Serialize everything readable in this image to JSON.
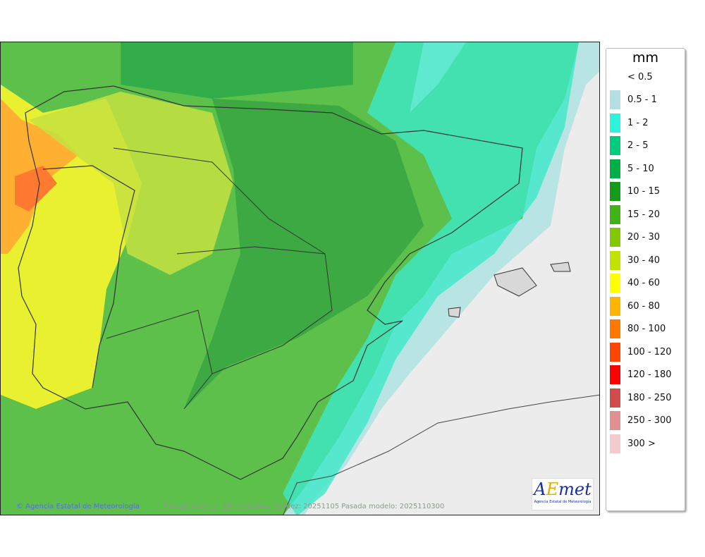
{
  "map": {
    "credit": "© Agencia Estatal de Meteorología",
    "caption": "Precipitación en 24 h máxima. Validez: 20251105 Pasada modelo: 2025110300",
    "logo_text": "AEmet",
    "logo_subtitle": "Agencia Estatal de Meteorología"
  },
  "legend": {
    "unit": "mm",
    "items": [
      {
        "label": "< 0.5",
        "color": "#ffffff"
      },
      {
        "label": "0.5 - 1",
        "color": "#b4dfe2"
      },
      {
        "label": "1 - 2",
        "color": "#2ef2dc"
      },
      {
        "label": "2 - 5",
        "color": "#00cc80"
      },
      {
        "label": "5 - 10",
        "color": "#00b044"
      },
      {
        "label": "10 - 15",
        "color": "#169a1a"
      },
      {
        "label": "15 - 20",
        "color": "#40b414"
      },
      {
        "label": "20 - 30",
        "color": "#84c800"
      },
      {
        "label": "30 - 40",
        "color": "#c2e200"
      },
      {
        "label": "40 - 60",
        "color": "#ffff00"
      },
      {
        "label": "60 - 80",
        "color": "#ffb400"
      },
      {
        "label": "80 - 100",
        "color": "#ff7800"
      },
      {
        "label": "100 - 120",
        "color": "#ff4600"
      },
      {
        "label": "120 - 180",
        "color": "#ff0000"
      },
      {
        "label": "180 - 250",
        "color": "#d24b4b"
      },
      {
        "label": "250 - 300",
        "color": "#e09090"
      },
      {
        "label": "300 >",
        "color": "#f2cccc"
      }
    ]
  }
}
